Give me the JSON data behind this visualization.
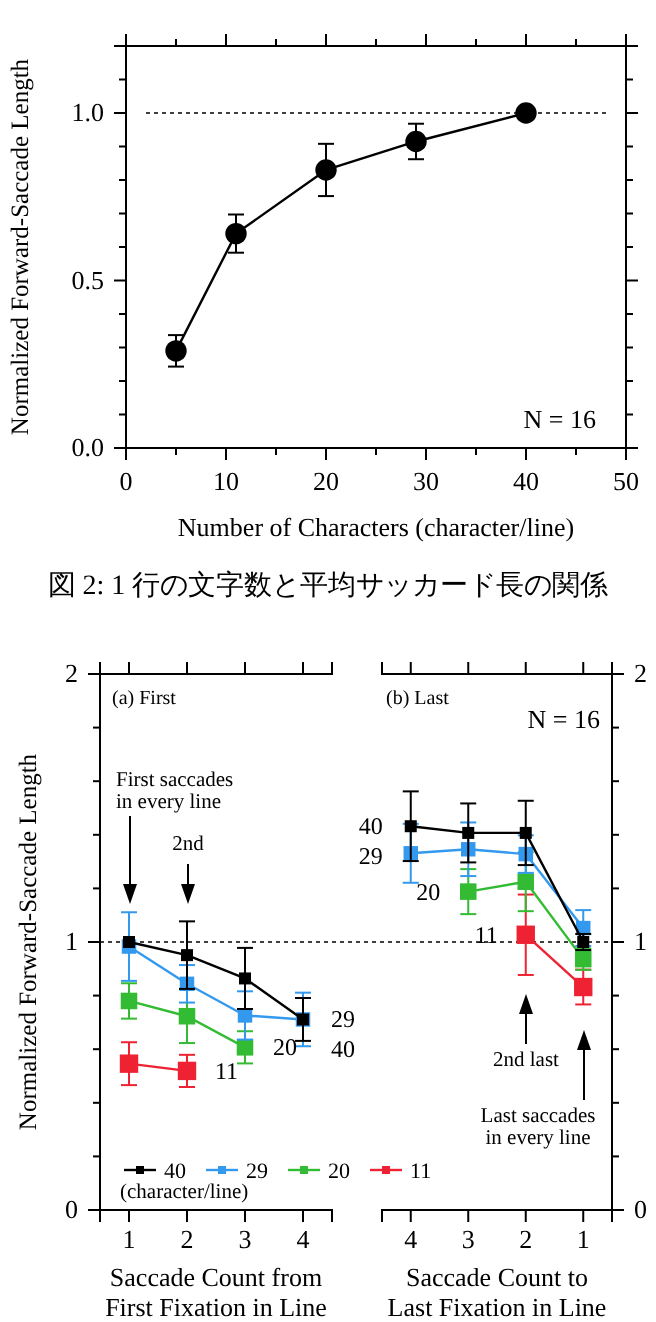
{
  "chart_data": [
    {
      "type": "line",
      "xlabel": "Number of Characters (character/line)",
      "ylabel": "Normalized Forward-Saccade Length",
      "annotations": [
        "N = 16",
        "図 2: 1 行の文字数と平均サッカード長の関係"
      ],
      "marker": "circle",
      "x": [
        5,
        11,
        20,
        29,
        40
      ],
      "series": [
        {
          "color": "#000000",
          "values": [
            0.29,
            0.64,
            0.83,
            0.915,
            1.0
          ],
          "errors": [
            0.047,
            0.057,
            0.078,
            0.053,
            null
          ]
        }
      ],
      "xlim": [
        0,
        50
      ],
      "xticks": [
        0,
        {
          "value": 5,
          "label": null
        },
        10,
        {
          "value": 15,
          "label": null
        },
        20,
        {
          "value": 25,
          "label": null
        },
        30,
        {
          "value": 35,
          "label": null
        },
        40,
        {
          "value": 45,
          "label": null
        },
        50
      ],
      "ylim": [
        0,
        1.2
      ],
      "yticks": [
        {
          "value": 0,
          "label": "0.0"
        },
        {
          "value": 0.1,
          "label": null
        },
        {
          "value": 0.2,
          "label": null
        },
        {
          "value": 0.3,
          "label": null
        },
        {
          "value": 0.4,
          "label": null
        },
        0.5,
        {
          "value": 0.6,
          "label": null
        },
        {
          "value": 0.7,
          "label": null
        },
        {
          "value": 0.8,
          "label": null
        },
        {
          "value": 0.9,
          "label": null
        },
        {
          "value": 1,
          "label": "1.0"
        },
        {
          "value": 1.1,
          "label": null
        },
        {
          "value": 1.2,
          "label": null
        }
      ],
      "ref_lines": [
        {
          "axis": "y",
          "value": 1,
          "line_style": "dotted",
          "color": "#000000"
        }
      ]
    },
    {
      "type": "line",
      "title": "(a) First",
      "xlabel": "Saccade Count from\nFirst Fixation in Line",
      "ylabel": "Normalized Forward-Saccade Length",
      "legend": "bottom right",
      "legend_title": "(character/line)",
      "marker": "square",
      "categories": [
        "1",
        "2",
        "3",
        "4"
      ],
      "series": [
        {
          "name": "40",
          "color": "#000000",
          "values": [
            1.0,
            0.951,
            0.864,
            0.711
          ],
          "errors": [
            null,
            0.126,
            0.114,
            0.08
          ]
        },
        {
          "name": "29",
          "color": "#3399ee",
          "values": [
            0.983,
            0.844,
            0.726,
            0.711
          ],
          "errors": [
            0.128,
            0.07,
            0.09,
            0.1
          ]
        },
        {
          "name": "20",
          "color": "#33bb33",
          "values": [
            0.78,
            0.723,
            0.607,
            null
          ],
          "errors": [
            0.066,
            0.1,
            0.06,
            null
          ]
        },
        {
          "name": "11",
          "color": "#ee2233",
          "values": [
            0.546,
            0.519,
            null,
            null
          ],
          "errors": [
            0.08,
            0.06,
            null,
            null
          ]
        }
      ],
      "ylim": [
        0,
        2
      ],
      "yticks": [
        0,
        {
          "value": 0.2,
          "label": null
        },
        {
          "value": 0.4,
          "label": null
        },
        {
          "value": 0.6,
          "label": null
        },
        {
          "value": 0.8,
          "label": null
        },
        1,
        {
          "value": 1.2,
          "label": null
        },
        {
          "value": 1.4,
          "label": null
        },
        {
          "value": 1.6,
          "label": null
        },
        {
          "value": 1.8,
          "label": null
        },
        2
      ],
      "ref_lines": [
        {
          "axis": "y",
          "value": 1,
          "line_style": "dotted",
          "color": "#000000"
        }
      ],
      "annotations": [
        "First saccades\nin every line",
        "2nd"
      ]
    },
    {
      "type": "line",
      "title": "(b) Last",
      "xlabel": "Saccade Count to\nLast Fixation in Line",
      "marker": "square",
      "categories": [
        "4",
        "3",
        "2",
        "1"
      ],
      "series": [
        {
          "name": "40",
          "color": "#000000",
          "values": [
            1.432,
            1.407,
            1.407,
            1.0
          ],
          "errors": [
            0.13,
            0.11,
            0.12,
            0.03
          ]
        },
        {
          "name": "29",
          "color": "#3399ee",
          "values": [
            1.331,
            1.346,
            1.328,
            1.052
          ],
          "errors": [
            0.11,
            0.1,
            0.07,
            0.067
          ]
        },
        {
          "name": "20",
          "color": "#33bb33",
          "values": [
            null,
            1.188,
            1.225,
            0.936
          ],
          "errors": [
            null,
            0.084,
            0.11,
            0.04
          ]
        },
        {
          "name": "11",
          "color": "#ee2233",
          "values": [
            null,
            null,
            1.027,
            0.832
          ],
          "errors": [
            null,
            null,
            0.15,
            0.065
          ]
        }
      ],
      "ylim": [
        0,
        2
      ],
      "yticks": [
        0,
        {
          "value": 0.2,
          "label": null
        },
        {
          "value": 0.4,
          "label": null
        },
        {
          "value": 0.6,
          "label": null
        },
        {
          "value": 0.8,
          "label": null
        },
        1,
        {
          "value": 1.2,
          "label": null
        },
        {
          "value": 1.4,
          "label": null
        },
        {
          "value": 1.6,
          "label": null
        },
        {
          "value": 1.8,
          "label": null
        },
        2
      ],
      "ref_lines": [
        {
          "axis": "y",
          "value": 1,
          "line_style": "dotted",
          "color": "#000000"
        }
      ],
      "annotations": [
        "N = 16",
        "2nd last",
        "Last saccades\nin every line"
      ]
    }
  ]
}
